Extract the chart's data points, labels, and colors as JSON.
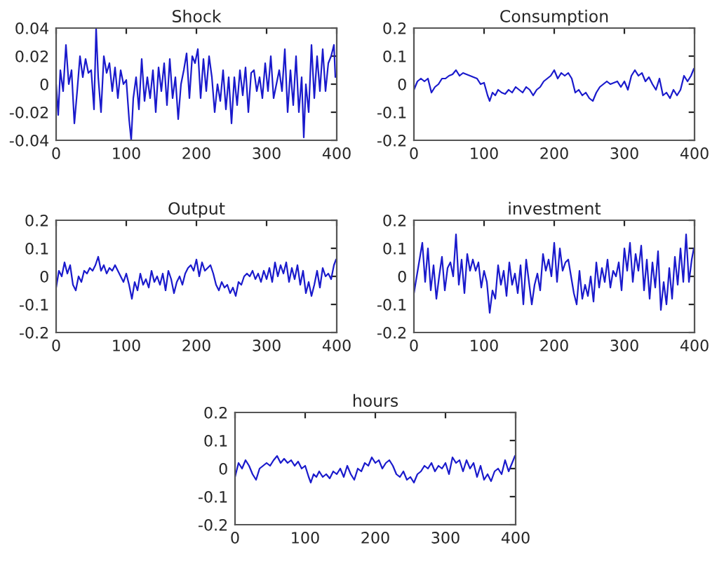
{
  "chart_data": [
    {
      "type": "line",
      "title": "Shock",
      "xlim": [
        0,
        400
      ],
      "xticks": [
        0,
        100,
        200,
        300,
        400
      ],
      "ylim": [
        -0.04,
        0.04
      ],
      "yticks": [
        -0.04,
        -0.02,
        0,
        0.02,
        0.04
      ],
      "x": [
        0,
        3,
        6,
        10,
        14,
        18,
        22,
        26,
        30,
        34,
        38,
        42,
        46,
        50,
        54,
        57,
        60,
        64,
        68,
        72,
        76,
        80,
        84,
        88,
        92,
        96,
        100,
        104,
        107,
        110,
        114,
        118,
        122,
        126,
        130,
        134,
        138,
        142,
        146,
        150,
        154,
        158,
        162,
        166,
        170,
        174,
        178,
        182,
        186,
        190,
        194,
        198,
        202,
        206,
        210,
        214,
        218,
        222,
        226,
        230,
        234,
        238,
        242,
        246,
        250,
        254,
        258,
        262,
        266,
        270,
        274,
        278,
        282,
        286,
        290,
        294,
        298,
        302,
        306,
        310,
        314,
        318,
        322,
        326,
        330,
        334,
        338,
        342,
        346,
        350,
        353,
        356,
        360,
        364,
        368,
        372,
        376,
        380,
        384,
        388,
        392,
        396,
        398
      ],
      "series": [
        {
          "color": "#1a1acc",
          "values": [
            0.0,
            -0.022,
            0.01,
            -0.005,
            0.028,
            0.0,
            0.01,
            -0.028,
            -0.005,
            0.02,
            0.005,
            0.018,
            0.008,
            0.01,
            -0.018,
            0.04,
            0.005,
            -0.02,
            0.02,
            0.008,
            0.015,
            -0.005,
            0.012,
            -0.01,
            0.01,
            0.0,
            0.003,
            -0.025,
            -0.04,
            -0.01,
            0.005,
            -0.018,
            0.018,
            -0.012,
            0.005,
            -0.01,
            0.01,
            -0.02,
            0.012,
            -0.005,
            0.015,
            -0.015,
            0.018,
            -0.01,
            0.005,
            -0.025,
            0.0,
            0.01,
            0.022,
            -0.01,
            0.02,
            0.015,
            0.025,
            -0.01,
            0.018,
            -0.005,
            0.02,
            0.005,
            -0.02,
            0.0,
            -0.012,
            0.01,
            -0.018,
            0.005,
            -0.028,
            0.005,
            -0.015,
            0.01,
            -0.008,
            0.012,
            -0.02,
            0.008,
            0.01,
            -0.005,
            0.005,
            -0.01,
            0.015,
            -0.005,
            0.02,
            -0.01,
            0.0,
            0.01,
            -0.005,
            0.025,
            -0.02,
            0.01,
            -0.015,
            0.02,
            -0.02,
            0.005,
            -0.038,
            0.0,
            -0.02,
            0.028,
            -0.01,
            0.02,
            -0.005,
            0.025,
            -0.005,
            0.015,
            0.02,
            0.028,
            0.005
          ]
        }
      ]
    },
    {
      "type": "line",
      "title": "Consumption",
      "xlim": [
        0,
        400
      ],
      "xticks": [
        0,
        100,
        200,
        300,
        400
      ],
      "ylim": [
        -0.2,
        0.2
      ],
      "yticks": [
        -0.2,
        -0.1,
        0,
        0.1,
        0.2
      ],
      "x": [
        0,
        5,
        10,
        15,
        20,
        25,
        30,
        35,
        40,
        45,
        50,
        55,
        60,
        65,
        70,
        75,
        80,
        85,
        90,
        95,
        100,
        105,
        108,
        112,
        116,
        120,
        125,
        130,
        135,
        140,
        145,
        150,
        155,
        160,
        165,
        170,
        175,
        180,
        185,
        190,
        195,
        200,
        205,
        210,
        215,
        220,
        225,
        230,
        235,
        240,
        245,
        250,
        255,
        260,
        265,
        270,
        275,
        280,
        285,
        290,
        295,
        300,
        305,
        310,
        315,
        320,
        325,
        330,
        335,
        340,
        345,
        350,
        355,
        360,
        365,
        370,
        375,
        380,
        385,
        390,
        395,
        399
      ],
      "series": [
        {
          "color": "#1a1acc",
          "values": [
            -0.02,
            0.01,
            0.02,
            0.01,
            0.02,
            -0.03,
            -0.01,
            0.0,
            0.02,
            0.02,
            0.03,
            0.035,
            0.05,
            0.03,
            0.04,
            0.035,
            0.03,
            0.025,
            0.02,
            0.0,
            0.005,
            -0.04,
            -0.06,
            -0.03,
            -0.04,
            -0.02,
            -0.03,
            -0.035,
            -0.02,
            -0.03,
            -0.01,
            -0.02,
            -0.03,
            -0.01,
            -0.02,
            -0.04,
            -0.02,
            -0.01,
            0.01,
            0.02,
            0.03,
            0.05,
            0.02,
            0.04,
            0.03,
            0.04,
            0.02,
            -0.03,
            -0.02,
            -0.04,
            -0.03,
            -0.05,
            -0.06,
            -0.03,
            -0.01,
            0.0,
            0.01,
            0.0,
            0.005,
            0.01,
            -0.01,
            0.01,
            -0.02,
            0.03,
            0.05,
            0.03,
            0.04,
            0.01,
            0.025,
            0.0,
            -0.02,
            0.02,
            -0.04,
            -0.03,
            -0.05,
            -0.02,
            -0.04,
            -0.02,
            0.03,
            0.01,
            0.03,
            0.055
          ]
        }
      ]
    },
    {
      "type": "line",
      "title": "Output",
      "xlim": [
        0,
        400
      ],
      "xticks": [
        0,
        100,
        200,
        300,
        400
      ],
      "ylim": [
        -0.2,
        0.2
      ],
      "yticks": [
        -0.2,
        -0.1,
        0,
        0.1,
        0.2
      ],
      "x": [
        0,
        4,
        8,
        12,
        16,
        20,
        24,
        28,
        32,
        36,
        40,
        44,
        48,
        52,
        56,
        60,
        64,
        68,
        72,
        76,
        80,
        84,
        88,
        92,
        96,
        100,
        104,
        108,
        112,
        116,
        120,
        124,
        128,
        132,
        136,
        140,
        144,
        148,
        152,
        156,
        160,
        164,
        168,
        172,
        176,
        180,
        184,
        188,
        192,
        196,
        200,
        204,
        208,
        212,
        216,
        220,
        224,
        228,
        232,
        236,
        240,
        244,
        248,
        252,
        256,
        260,
        264,
        268,
        272,
        276,
        280,
        284,
        288,
        292,
        296,
        300,
        304,
        308,
        312,
        316,
        320,
        324,
        328,
        332,
        336,
        340,
        344,
        348,
        352,
        356,
        360,
        364,
        368,
        372,
        376,
        380,
        384,
        388,
        392,
        396,
        399
      ],
      "series": [
        {
          "color": "#1a1acc",
          "values": [
            -0.04,
            0.02,
            0.0,
            0.05,
            0.01,
            0.04,
            -0.03,
            -0.05,
            0.0,
            -0.02,
            0.02,
            0.01,
            0.03,
            0.02,
            0.04,
            0.07,
            0.02,
            0.04,
            0.01,
            0.03,
            0.02,
            0.04,
            0.02,
            0.0,
            -0.02,
            0.01,
            -0.03,
            -0.08,
            -0.02,
            -0.05,
            0.01,
            -0.03,
            -0.01,
            -0.04,
            0.02,
            -0.02,
            0.0,
            -0.03,
            0.01,
            -0.05,
            0.02,
            -0.01,
            -0.06,
            -0.02,
            0.0,
            -0.03,
            0.01,
            0.03,
            0.04,
            0.02,
            0.06,
            0.0,
            0.05,
            0.02,
            0.03,
            0.04,
            0.01,
            -0.03,
            -0.05,
            -0.02,
            -0.04,
            -0.03,
            -0.06,
            -0.04,
            -0.07,
            -0.02,
            -0.03,
            0.0,
            0.01,
            0.0,
            0.02,
            -0.01,
            0.01,
            -0.02,
            0.02,
            -0.01,
            0.03,
            -0.02,
            0.05,
            0.0,
            0.04,
            0.01,
            0.05,
            -0.02,
            0.03,
            -0.01,
            0.04,
            -0.03,
            0.02,
            -0.06,
            -0.02,
            -0.07,
            -0.03,
            0.02,
            -0.04,
            0.03,
            0.0,
            0.01,
            -0.01,
            0.04,
            0.06
          ]
        }
      ]
    },
    {
      "type": "line",
      "title": "investment",
      "xlim": [
        0,
        400
      ],
      "xticks": [
        0,
        100,
        200,
        300,
        400
      ],
      "ylim": [
        -0.2,
        0.2
      ],
      "yticks": [
        -0.2,
        -0.1,
        0,
        0.1,
        0.2
      ],
      "x": [
        0,
        4,
        8,
        12,
        16,
        20,
        24,
        28,
        32,
        36,
        40,
        44,
        48,
        52,
        56,
        60,
        64,
        68,
        72,
        76,
        80,
        84,
        88,
        92,
        96,
        100,
        104,
        108,
        112,
        116,
        120,
        124,
        128,
        132,
        136,
        140,
        144,
        148,
        152,
        156,
        160,
        164,
        168,
        172,
        176,
        180,
        184,
        188,
        192,
        196,
        200,
        204,
        208,
        212,
        216,
        220,
        224,
        228,
        232,
        236,
        240,
        244,
        248,
        252,
        256,
        260,
        264,
        268,
        272,
        276,
        280,
        284,
        288,
        292,
        296,
        300,
        304,
        308,
        312,
        316,
        320,
        324,
        328,
        332,
        336,
        340,
        344,
        348,
        352,
        356,
        360,
        364,
        368,
        372,
        376,
        380,
        384,
        388,
        392,
        396,
        399
      ],
      "series": [
        {
          "color": "#1a1acc",
          "values": [
            -0.06,
            0.0,
            0.06,
            0.12,
            -0.02,
            0.1,
            -0.05,
            0.04,
            -0.08,
            0.0,
            0.07,
            -0.05,
            0.03,
            0.05,
            0.0,
            0.15,
            -0.03,
            0.06,
            -0.06,
            0.08,
            0.02,
            0.06,
            0.02,
            0.05,
            -0.04,
            0.02,
            -0.02,
            -0.13,
            -0.05,
            -0.08,
            0.04,
            -0.03,
            0.02,
            -0.07,
            0.05,
            -0.03,
            0.01,
            -0.06,
            0.04,
            -0.1,
            0.06,
            -0.02,
            -0.1,
            -0.03,
            0.01,
            -0.05,
            0.08,
            0.02,
            0.06,
            0.0,
            0.12,
            -0.02,
            0.1,
            0.02,
            0.05,
            0.06,
            0.0,
            -0.06,
            -0.1,
            0.02,
            -0.08,
            -0.03,
            -0.07,
            0.0,
            -0.09,
            0.05,
            -0.04,
            0.03,
            -0.02,
            0.06,
            -0.04,
            0.02,
            0.0,
            0.05,
            -0.05,
            0.1,
            0.02,
            0.12,
            -0.02,
            0.08,
            0.02,
            0.11,
            -0.05,
            0.06,
            -0.08,
            0.05,
            -0.04,
            0.09,
            -0.12,
            -0.02,
            -0.1,
            0.03,
            -0.08,
            0.07,
            -0.03,
            0.1,
            -0.02,
            0.15,
            -0.02,
            0.06,
            0.1
          ]
        }
      ]
    },
    {
      "type": "line",
      "title": "hours",
      "xlim": [
        0,
        400
      ],
      "xticks": [
        0,
        100,
        200,
        300,
        400
      ],
      "ylim": [
        -0.2,
        0.2
      ],
      "yticks": [
        -0.2,
        -0.1,
        0,
        0.1,
        0.2
      ],
      "x": [
        0,
        5,
        10,
        15,
        20,
        25,
        30,
        35,
        40,
        45,
        50,
        55,
        60,
        65,
        70,
        75,
        80,
        85,
        90,
        95,
        100,
        105,
        108,
        112,
        116,
        120,
        125,
        130,
        135,
        140,
        145,
        150,
        155,
        160,
        165,
        170,
        175,
        180,
        185,
        190,
        195,
        200,
        205,
        210,
        215,
        220,
        225,
        230,
        235,
        240,
        245,
        250,
        255,
        260,
        265,
        270,
        275,
        280,
        285,
        290,
        295,
        300,
        305,
        310,
        315,
        320,
        325,
        330,
        335,
        340,
        345,
        350,
        355,
        360,
        365,
        370,
        375,
        380,
        385,
        390,
        395,
        399
      ],
      "series": [
        {
          "color": "#1a1acc",
          "values": [
            -0.03,
            0.02,
            0.0,
            0.03,
            0.01,
            -0.02,
            -0.04,
            0.0,
            0.01,
            0.02,
            0.01,
            0.03,
            0.045,
            0.02,
            0.035,
            0.02,
            0.03,
            0.01,
            0.025,
            0.0,
            0.01,
            -0.03,
            -0.05,
            -0.02,
            -0.03,
            -0.01,
            -0.03,
            -0.02,
            -0.035,
            -0.01,
            -0.02,
            0.0,
            -0.03,
            0.01,
            -0.02,
            -0.04,
            0.0,
            -0.01,
            0.02,
            0.01,
            0.04,
            0.02,
            0.03,
            0.0,
            0.02,
            0.03,
            0.01,
            -0.02,
            -0.03,
            -0.01,
            -0.04,
            -0.03,
            -0.05,
            -0.02,
            -0.01,
            0.01,
            0.0,
            0.02,
            -0.01,
            0.01,
            0.0,
            0.02,
            -0.02,
            0.04,
            0.02,
            0.03,
            -0.01,
            0.03,
            0.0,
            0.02,
            -0.03,
            0.01,
            -0.04,
            -0.02,
            -0.045,
            -0.01,
            0.0,
            -0.02,
            0.03,
            -0.01,
            0.02,
            0.045
          ]
        }
      ]
    }
  ]
}
